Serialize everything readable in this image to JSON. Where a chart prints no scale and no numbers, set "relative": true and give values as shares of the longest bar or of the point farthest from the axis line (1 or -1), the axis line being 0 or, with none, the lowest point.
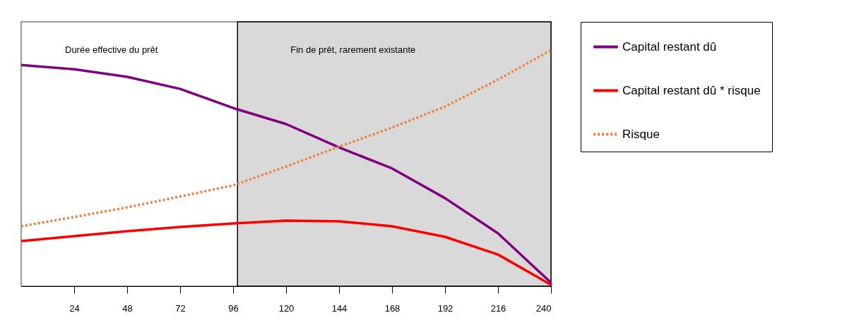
{
  "chart_data": {
    "type": "line",
    "relative": true,
    "x": [
      0,
      24,
      48,
      72,
      96,
      120,
      144,
      168,
      192,
      216,
      240
    ],
    "xlim": [
      0,
      240
    ],
    "xticks": [
      24,
      48,
      72,
      96,
      120,
      144,
      168,
      192,
      216,
      240
    ],
    "series": [
      {
        "name": "Capital restant dû",
        "color": "#800080",
        "values": [
          0.937,
          0.919,
          0.887,
          0.836,
          0.755,
          0.687,
          0.588,
          0.499,
          0.373,
          0.224,
          0.015
        ]
      },
      {
        "name": "Capital restant dû * risque",
        "color": "#ff0000",
        "values": [
          0.191,
          0.212,
          0.233,
          0.251,
          0.266,
          0.278,
          0.275,
          0.254,
          0.209,
          0.134,
          0.006
        ]
      },
      {
        "name": "Risque",
        "color": "#f08040",
        "line_style": "dotted",
        "values": [
          0.254,
          0.293,
          0.334,
          0.38,
          0.427,
          0.507,
          0.591,
          0.672,
          0.761,
          0.875,
          1
        ]
      }
    ],
    "bands": [
      {
        "axis": "x",
        "from": 98,
        "to": 240,
        "label": "Fin de prêt, rarement existante",
        "color": "#d9d9d9"
      }
    ],
    "annotations": [
      "Durée effective du prêt"
    ],
    "grid": false,
    "legend": "right"
  }
}
